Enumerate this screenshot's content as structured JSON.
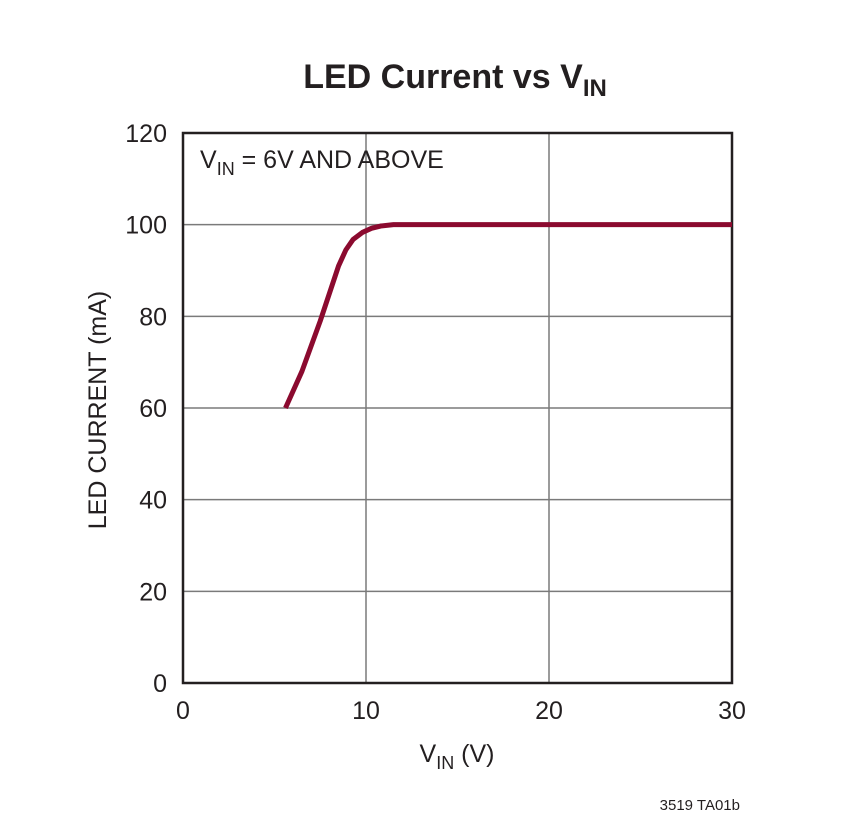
{
  "chart_data": {
    "type": "line",
    "title": {
      "main": "LED Current vs V",
      "sub": "IN"
    },
    "xlabel": {
      "main": "V",
      "sub": "IN",
      "unit": " (V)"
    },
    "ylabel": "LED CURRENT (mA)",
    "xlim": [
      0,
      30
    ],
    "ylim": [
      0,
      120
    ],
    "xticks": [
      0,
      10,
      20,
      30
    ],
    "yticks": [
      0,
      20,
      40,
      60,
      80,
      100,
      120
    ],
    "xtick_labels": [
      "0",
      "10",
      "20",
      "30"
    ],
    "ytick_labels": [
      "0",
      "20",
      "40",
      "60",
      "80",
      "100",
      "120"
    ],
    "grid": true,
    "annotation": {
      "main": "V",
      "sub": "IN",
      "rest": " = 6V AND ABOVE"
    },
    "series": [
      {
        "color": "#8b0a2f",
        "x": [
          5.6,
          6.5,
          7.5,
          8.5,
          8.9,
          9.3,
          9.8,
          10.3,
          10.8,
          11.5,
          12,
          15,
          20,
          25,
          30
        ],
        "y": [
          60,
          68,
          79,
          91,
          94.5,
          96.8,
          98.3,
          99.2,
          99.7,
          100,
          100,
          100,
          100,
          100,
          100
        ]
      }
    ]
  },
  "figure_code": "3519 TA01b"
}
